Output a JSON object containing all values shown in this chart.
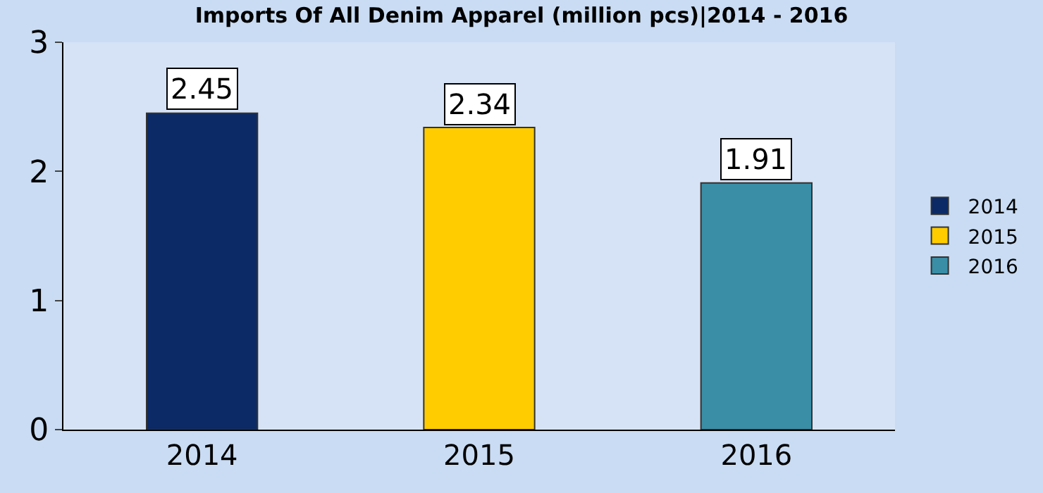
{
  "chart_data": {
    "type": "bar",
    "title": "Imports Of All Denim Apparel (million pcs)|2014 - 2016",
    "categories": [
      "2014",
      "2015",
      "2016"
    ],
    "series": [
      {
        "name": "2014",
        "color": "#0b2a66",
        "values": [
          2.45,
          null,
          null
        ]
      },
      {
        "name": "2015",
        "color": "#ffcc00",
        "values": [
          null,
          2.34,
          null
        ]
      },
      {
        "name": "2016",
        "color": "#3a8ea6",
        "values": [
          null,
          null,
          1.91
        ]
      }
    ],
    "ylim": [
      0,
      3
    ],
    "yticks": [
      0,
      1,
      2,
      3
    ],
    "grid": false,
    "legend": "right",
    "data_labels": true
  }
}
